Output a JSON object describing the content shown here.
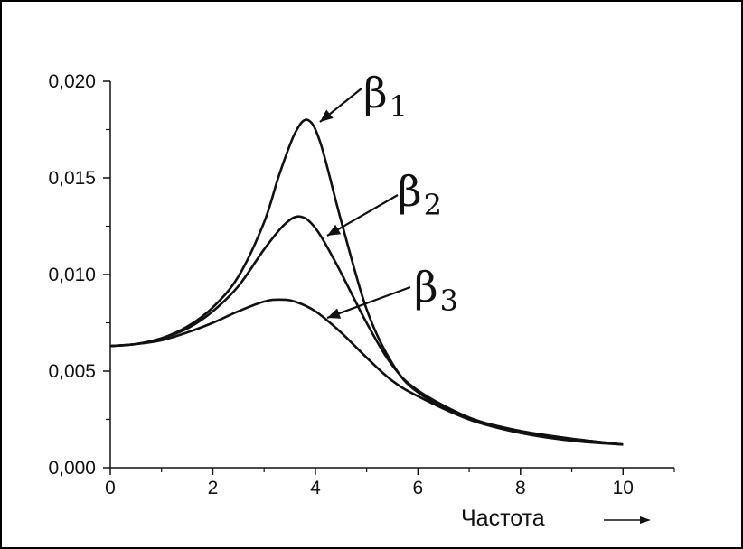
{
  "chart_data": {
    "type": "line",
    "xlabel": "Частота",
    "ylabel": "",
    "title": "",
    "xlim": [
      0,
      11
    ],
    "ylim": [
      0,
      0.02
    ],
    "x_ticks": [
      0,
      2,
      4,
      6,
      8,
      10
    ],
    "x_tick_labels": [
      "0",
      "2",
      "4",
      "6",
      "8",
      "10"
    ],
    "y_ticks": [
      0,
      0.005,
      0.01,
      0.015,
      0.02
    ],
    "y_tick_labels": [
      "0,000",
      "0,005",
      "0,010",
      "0,015",
      "0,020"
    ],
    "grid": false,
    "series": [
      {
        "name": "β1",
        "x": [
          0,
          0.5,
          1,
          1.5,
          2,
          2.5,
          3,
          3.3,
          3.6,
          3.85,
          4.1,
          4.5,
          5,
          5.5,
          6,
          7,
          8,
          9,
          10
        ],
        "values": [
          0.0063,
          0.0064,
          0.0067,
          0.0073,
          0.0083,
          0.0099,
          0.0127,
          0.0152,
          0.0173,
          0.018,
          0.0168,
          0.0128,
          0.0082,
          0.0054,
          0.0039,
          0.0025,
          0.0019,
          0.0015,
          0.0012
        ]
      },
      {
        "name": "β2",
        "x": [
          0,
          0.5,
          1,
          1.5,
          2,
          2.5,
          3,
          3.4,
          3.7,
          4,
          4.4,
          5,
          5.5,
          6,
          7,
          8,
          9,
          10
        ],
        "values": [
          0.0063,
          0.0064,
          0.0067,
          0.0072,
          0.0081,
          0.0094,
          0.0113,
          0.0126,
          0.013,
          0.0124,
          0.0106,
          0.0075,
          0.0053,
          0.004,
          0.0026,
          0.0019,
          0.0015,
          0.0012
        ]
      },
      {
        "name": "β3",
        "x": [
          0,
          0.5,
          1,
          1.5,
          2,
          2.5,
          3,
          3.3,
          3.6,
          4,
          4.5,
          5,
          5.5,
          6,
          7,
          8,
          9,
          10
        ],
        "values": [
          0.0063,
          0.0064,
          0.0066,
          0.007,
          0.0075,
          0.0081,
          0.0086,
          0.0087,
          0.0086,
          0.0081,
          0.007,
          0.0057,
          0.0045,
          0.0037,
          0.0025,
          0.0018,
          0.0014,
          0.0012
        ]
      }
    ],
    "annotations": [
      {
        "base": "β",
        "sub": "1"
      },
      {
        "base": "β",
        "sub": "2"
      },
      {
        "base": "β",
        "sub": "3"
      }
    ]
  }
}
